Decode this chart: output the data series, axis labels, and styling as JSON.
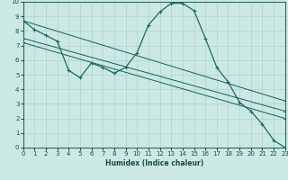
{
  "xlabel": "Humidex (Indice chaleur)",
  "bg_color": "#cce8e4",
  "grid_color": "#aad4cf",
  "line_color": "#1a6b5a",
  "xlim": [
    0,
    23
  ],
  "ylim": [
    0,
    10
  ],
  "xticks": [
    0,
    1,
    2,
    3,
    4,
    5,
    6,
    7,
    8,
    9,
    10,
    11,
    12,
    13,
    14,
    15,
    16,
    17,
    18,
    19,
    20,
    21,
    22,
    23
  ],
  "yticks": [
    0,
    1,
    2,
    3,
    4,
    5,
    6,
    7,
    8,
    9,
    10
  ],
  "series": [
    {
      "x": [
        0,
        1,
        2,
        3,
        4,
        5,
        6,
        7,
        8,
        9,
        10,
        11,
        12,
        13,
        14,
        15,
        16,
        17,
        18,
        19,
        20,
        21,
        22,
        23
      ],
      "y": [
        8.7,
        8.1,
        7.7,
        7.3,
        5.3,
        4.8,
        5.8,
        5.5,
        5.1,
        5.5,
        6.5,
        8.4,
        9.3,
        9.9,
        9.9,
        9.4,
        7.5,
        5.5,
        4.5,
        3.1,
        2.5,
        1.6,
        0.5,
        0.0
      ]
    },
    {
      "x": [
        0,
        23
      ],
      "y": [
        8.7,
        3.2
      ]
    },
    {
      "x": [
        0,
        23
      ],
      "y": [
        7.5,
        2.5
      ]
    },
    {
      "x": [
        0,
        23
      ],
      "y": [
        7.2,
        2.0
      ]
    }
  ]
}
